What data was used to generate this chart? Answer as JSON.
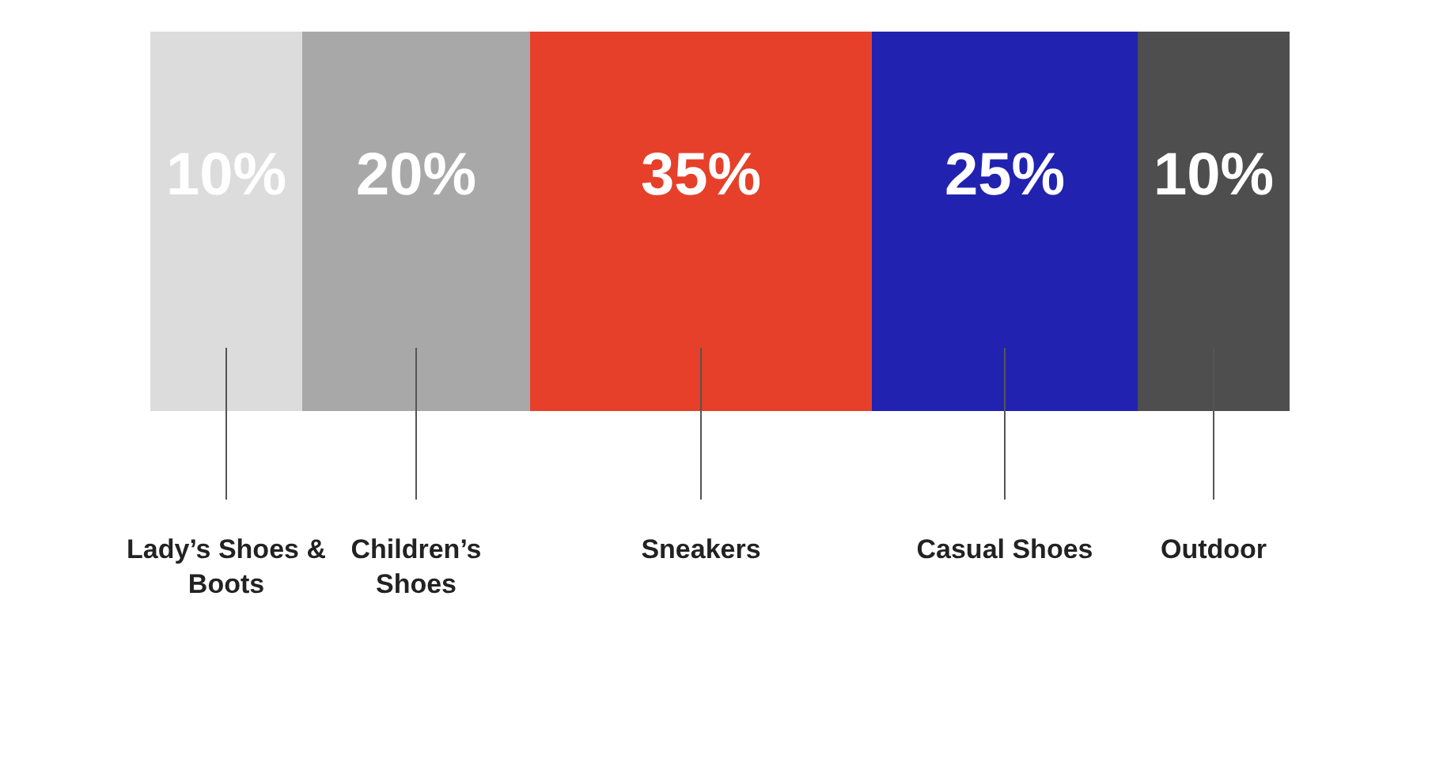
{
  "chart_data": {
    "type": "other",
    "categories": [
      "Lady’s Shoes & Boots",
      "Children’s Shoes",
      "Sneakers",
      "Casual Shoes",
      "Outdoor"
    ],
    "values": [
      10,
      20,
      35,
      25,
      10
    ],
    "value_labels": [
      "10%",
      "20%",
      "35%",
      "25%",
      "10%"
    ],
    "colors": [
      "#dcdcdc",
      "#a8a8a8",
      "#e6402a",
      "#2222b0",
      "#4e4e4e"
    ]
  }
}
